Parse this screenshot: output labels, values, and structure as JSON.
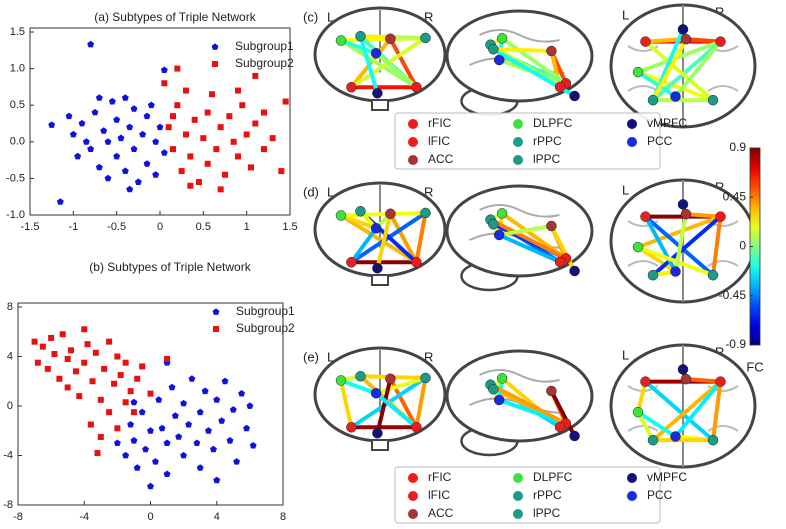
{
  "chart_data": [
    {
      "type": "scatter",
      "title": "(a) Subtypes of Triple Network",
      "xlim": [
        -1.5,
        1.5
      ],
      "xticks": [
        -1.5,
        -1,
        -0.5,
        0,
        0.5,
        1,
        1.5
      ],
      "ylim": [
        -1,
        1.5
      ],
      "yticks": [
        1.5,
        {
          "value": 1,
          "label": "1.0"
        },
        0.5,
        {
          "value": 0,
          "label": "0.0"
        },
        -0.5,
        {
          "value": -1,
          "label": "-1.0"
        }
      ],
      "series": [
        {
          "name": "Subgroup1",
          "color": "#1010e0",
          "marker": "pentagon",
          "x": [
            -0.8,
            -1.25,
            -1.15,
            -1.05,
            -1,
            -0.95,
            -0.9,
            -0.85,
            -0.8,
            -0.75,
            -0.7,
            -0.65,
            -0.6,
            -0.55,
            -0.5,
            -0.5,
            -0.45,
            -0.4,
            -0.4,
            -0.35,
            -0.3,
            -0.3,
            -0.25,
            -0.2,
            -0.15,
            -0.15,
            -0.1,
            -0.05,
            -0.05,
            0,
            0.05,
            -0.6,
            -0.7,
            -0.35,
            0.05
          ],
          "values": [
            1.33,
            0.23,
            -0.82,
            0.35,
            0.1,
            -0.2,
            0.25,
            0,
            -0.1,
            0.4,
            -0.35,
            0.15,
            -0.5,
            0.55,
            0.3,
            -0.2,
            0.05,
            0.6,
            -0.4,
            0.2,
            -0.1,
            0.45,
            -0.55,
            0.1,
            0.35,
            -0.3,
            0.5,
            0,
            -0.45,
            0.2,
            -0.15,
            0,
            0.6,
            -0.65,
            0.98
          ]
        },
        {
          "name": "Subgroup2",
          "color": "#e81010",
          "marker": "square",
          "x": [
            0.1,
            0.15,
            0.2,
            0.25,
            0.3,
            0.3,
            0.35,
            0.4,
            0.45,
            0.5,
            0.55,
            0.55,
            0.6,
            0.65,
            0.7,
            0.75,
            0.8,
            0.85,
            0.9,
            0.95,
            1,
            1.05,
            1.1,
            1.2,
            1.3,
            1.4,
            1.45,
            0.2,
            0.05,
            0.35,
            1.1,
            0.7,
            0.15,
            0.9,
            1.2
          ],
          "values": [
            0.2,
            -0.1,
            0.5,
            -0.4,
            0.1,
            0.7,
            -0.2,
            0.3,
            -0.55,
            0.05,
            0.4,
            -0.3,
            0.65,
            -0.1,
            0.2,
            -0.45,
            0.35,
            0,
            -0.2,
            0.5,
            0.1,
            -0.35,
            0.25,
            -0.1,
            0.05,
            -0.4,
            0.55,
            1,
            0.8,
            -0.6,
            0.9,
            -0.65,
            0.35,
            0.7,
            0.4
          ]
        }
      ]
    },
    {
      "type": "scatter",
      "title": "(b) Subtypes of Triple Network",
      "xlim": [
        -8,
        8
      ],
      "xticks": [
        -8,
        -4,
        0,
        4,
        8
      ],
      "ylim": [
        -8,
        8
      ],
      "yticks": [
        8,
        4,
        0,
        -4,
        -8
      ],
      "series": [
        {
          "name": "Subgroup1",
          "color": "#1010e0",
          "marker": "pentagon",
          "x": [
            -2,
            -1.5,
            -1.2,
            -1,
            -0.8,
            -0.5,
            -0.3,
            0,
            0,
            0.3,
            0.5,
            0.7,
            1,
            1,
            1.3,
            1.5,
            1.7,
            2,
            2,
            2.3,
            2.5,
            2.8,
            3,
            3,
            3.3,
            3.5,
            3.8,
            4,
            4,
            4.3,
            4.5,
            4.8,
            5,
            5.2,
            5.5,
            5.8,
            6,
            6.2,
            -1,
            1
          ],
          "values": [
            -3,
            -4,
            -1.5,
            -2.8,
            -5,
            -0.5,
            -3.5,
            -2,
            -6.5,
            -4.5,
            0.5,
            -1.8,
            -3,
            -5.5,
            1.5,
            -0.8,
            -2.5,
            -4,
            0.2,
            -1.5,
            2.2,
            -3,
            -0.5,
            -5,
            1.2,
            -2,
            -3.5,
            0.5,
            -6,
            -1.2,
            2,
            -2.8,
            -0.3,
            -4.5,
            1,
            -1.8,
            0,
            -3.2,
            0.3,
            3.5
          ]
        },
        {
          "name": "Subgroup2",
          "color": "#e81010",
          "marker": "square",
          "x": [
            -7,
            -6.5,
            -6.8,
            -6,
            -6.2,
            -5.8,
            -5.5,
            -5.3,
            -5,
            -5,
            -4.8,
            -4.5,
            -4.3,
            -4,
            -4,
            -3.8,
            -3.6,
            -3.5,
            -3.3,
            -3,
            -3,
            -2.8,
            -2.5,
            -2.5,
            -2.2,
            -2,
            -2,
            -1.8,
            -1.5,
            -1.5,
            -1.2,
            -1,
            -0.8,
            -0.5,
            0,
            -3.2,
            1
          ],
          "values": [
            5.2,
            4.8,
            3.5,
            5.5,
            3,
            4.2,
            2.2,
            5.8,
            3.8,
            1.5,
            4.5,
            2.8,
            0.8,
            6.2,
            3.5,
            5,
            -1.5,
            2,
            4.3,
            0.5,
            -2.5,
            3,
            5.2,
            -0.5,
            1.8,
            4,
            -1.8,
            2.5,
            0.3,
            3.5,
            1.2,
            -0.5,
            2.2,
            3.2,
            1,
            -3.8,
            3.8
          ]
        }
      ]
    }
  ],
  "side_labels": {
    "left": "L",
    "right": "R"
  },
  "node_legend": [
    {
      "name": "rFIC",
      "color": "#f01a1a"
    },
    {
      "name": "lFIC",
      "color": "#e82020"
    },
    {
      "name": "ACC",
      "color": "#a83434"
    },
    {
      "name": "DLPFC",
      "color": "#3de23d"
    },
    {
      "name": "rPPC",
      "color": "#1c9a8a"
    },
    {
      "name": "lPPC",
      "color": "#1c9a8a"
    },
    {
      "name": "vMPFC",
      "color": "#12127a"
    },
    {
      "name": "PCC",
      "color": "#1a2ae0"
    }
  ],
  "brain_panels": [
    {
      "label": "(c)",
      "edges": [
        {
          "nodes": [
            0,
            1
          ],
          "fc": 0.65
        },
        {
          "nodes": [
            2,
            0
          ],
          "fc": 0.55
        },
        {
          "nodes": [
            2,
            1
          ],
          "fc": 0.35
        },
        {
          "nodes": [
            3,
            0
          ],
          "fc": 0.05
        },
        {
          "nodes": [
            3,
            4
          ],
          "fc": 0.2
        },
        {
          "nodes": [
            5,
            0
          ],
          "fc": -0.1
        },
        {
          "nodes": [
            4,
            1
          ],
          "fc": 0.15
        },
        {
          "nodes": [
            5,
            4
          ],
          "fc": 0.1
        },
        {
          "nodes": [
            7,
            0
          ],
          "fc": 0.05
        },
        {
          "nodes": [
            7,
            3
          ],
          "fc": -0.15
        },
        {
          "nodes": [
            6,
            5
          ],
          "fc": -0.2
        },
        {
          "nodes": [
            2,
            5
          ],
          "fc": 0.25
        }
      ]
    },
    {
      "label": "(d)",
      "edges": [
        {
          "nodes": [
            0,
            1
          ],
          "fc": 0.88
        },
        {
          "nodes": [
            2,
            0
          ],
          "fc": 0.4
        },
        {
          "nodes": [
            3,
            0
          ],
          "fc": 0.35
        },
        {
          "nodes": [
            3,
            7
          ],
          "fc": 0.3
        },
        {
          "nodes": [
            4,
            1
          ],
          "fc": -0.5
        },
        {
          "nodes": [
            5,
            0
          ],
          "fc": -0.6
        },
        {
          "nodes": [
            5,
            7
          ],
          "fc": 0.25
        },
        {
          "nodes": [
            4,
            0
          ],
          "fc": 0.45
        },
        {
          "nodes": [
            6,
            2
          ],
          "fc": 0.3
        },
        {
          "nodes": [
            7,
            1
          ],
          "fc": -0.35
        },
        {
          "nodes": [
            3,
            4
          ],
          "fc": 0.2
        },
        {
          "nodes": [
            2,
            7
          ],
          "fc": 0.1
        }
      ]
    },
    {
      "label": "(e)",
      "edges": [
        {
          "nodes": [
            0,
            1
          ],
          "fc": 0.85
        },
        {
          "nodes": [
            2,
            0
          ],
          "fc": 0.5
        },
        {
          "nodes": [
            3,
            1
          ],
          "fc": 0.3
        },
        {
          "nodes": [
            4,
            1
          ],
          "fc": -0.3
        },
        {
          "nodes": [
            5,
            0
          ],
          "fc": 0.35
        },
        {
          "nodes": [
            7,
            4
          ],
          "fc": 0.2
        },
        {
          "nodes": [
            3,
            7
          ],
          "fc": -0.2
        },
        {
          "nodes": [
            6,
            2
          ],
          "fc": 0.9
        },
        {
          "nodes": [
            5,
            4
          ],
          "fc": 0.3
        },
        {
          "nodes": [
            7,
            0
          ],
          "fc": -0.25
        },
        {
          "nodes": [
            4,
            0
          ],
          "fc": 0.4
        },
        {
          "nodes": [
            3,
            5
          ],
          "fc": 0.15
        }
      ]
    }
  ],
  "colorbar": {
    "label": "FC",
    "colormap": "jet",
    "ylim": [
      -0.9,
      0.9
    ],
    "yticks": [
      0.9,
      0.45,
      0,
      -0.45,
      -0.9
    ]
  }
}
